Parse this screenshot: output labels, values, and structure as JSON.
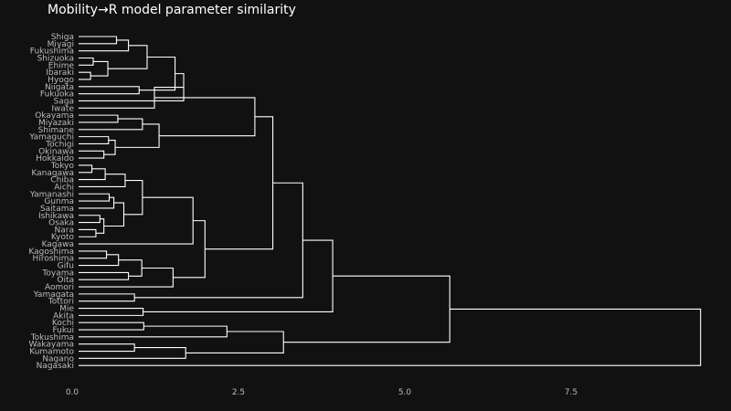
{
  "chart_data": {
    "type": "dendrogram",
    "title": "Mobility→R model parameter similarity",
    "orientation": "horizontal",
    "xlim": [
      0,
      9.5
    ],
    "x_ticks": [
      0,
      2.5,
      5,
      7.5
    ],
    "x_tick_labels": [
      "0.0",
      "2.5",
      "5.0",
      "7.5"
    ],
    "grid": false,
    "leaves": [
      "Shiga",
      "Miyagi",
      "Fukushima",
      "Shizuoka",
      "Ehime",
      "Ibaraki",
      "Hyogo",
      "Niigata",
      "Fukuoka",
      "Saga",
      "Iwate",
      "Okayama",
      "Miyazaki",
      "Shimane",
      "Yamaguchi",
      "Tochigi",
      "Okinawa",
      "Hokkaido",
      "Tokyo",
      "Kanagawa",
      "Chiba",
      "Aichi",
      "Yamanashi",
      "Gunma",
      "Saitama",
      "Ishikawa",
      "Osaka",
      "Nara",
      "Kyoto",
      "Kagawa",
      "Kagoshima",
      "Hiroshima",
      "Gifu",
      "Toyama",
      "Oita",
      "Aomori",
      "Yamagata",
      "Tottori",
      "Mie",
      "Akita",
      "Kochi",
      "Fukui",
      "Tokushima",
      "Wakayama",
      "Kumamoto",
      "Nagano",
      "Nagasaki"
    ],
    "merges": [
      {
        "a": "Shiga",
        "b": "Miyagi",
        "height": 0.57
      },
      {
        "a": 0,
        "b": "Fukushima",
        "height": 0.75
      },
      {
        "a": "Shizuoka",
        "b": "Ehime",
        "height": 0.22
      },
      {
        "a": "Ibaraki",
        "b": "Hyogo",
        "height": 0.18
      },
      {
        "a": 2,
        "b": 3,
        "height": 0.44
      },
      {
        "a": 1,
        "b": 4,
        "height": 1.03
      },
      {
        "a": "Niigata",
        "b": "Fukuoka",
        "height": 0.91
      },
      {
        "a": 5,
        "b": 6,
        "height": 1.45
      },
      {
        "a": 7,
        "b": "Saga",
        "height": 1.58
      },
      {
        "a": 8,
        "b": "Iwate",
        "height": 1.14
      },
      {
        "a": "Okayama",
        "b": "Miyazaki",
        "height": 0.59
      },
      {
        "a": 10,
        "b": "Shimane",
        "height": 0.96
      },
      {
        "a": "Yamaguchi",
        "b": "Tochigi",
        "height": 0.45
      },
      {
        "a": "Okinawa",
        "b": "Hokkaido",
        "height": 0.38
      },
      {
        "a": 12,
        "b": 13,
        "height": 0.55
      },
      {
        "a": 11,
        "b": 14,
        "height": 1.21
      },
      {
        "a": 9,
        "b": 15,
        "height": 2.65
      },
      {
        "a": "Tokyo",
        "b": "Kanagawa",
        "height": 0.2
      },
      {
        "a": 17,
        "b": "Chiba",
        "height": 0.4
      },
      {
        "a": 18,
        "b": "Aichi",
        "height": 0.7
      },
      {
        "a": "Yamanashi",
        "b": "Gunma",
        "height": 0.46
      },
      {
        "a": 20,
        "b": "Saitama",
        "height": 0.53
      },
      {
        "a": "Ishikawa",
        "b": "Osaka",
        "height": 0.32
      },
      {
        "a": "Nara",
        "b": "Kyoto",
        "height": 0.26
      },
      {
        "a": 22,
        "b": 23,
        "height": 0.38
      },
      {
        "a": 21,
        "b": 24,
        "height": 0.68
      },
      {
        "a": 19,
        "b": 25,
        "height": 0.96
      },
      {
        "a": 26,
        "b": "Kagawa",
        "height": 1.72
      },
      {
        "a": "Kagoshima",
        "b": "Hiroshima",
        "height": 0.42
      },
      {
        "a": 28,
        "b": "Gifu",
        "height": 0.6
      },
      {
        "a": "Toyama",
        "b": "Oita",
        "height": 0.75
      },
      {
        "a": 29,
        "b": 30,
        "height": 0.95
      },
      {
        "a": 31,
        "b": "Aomori",
        "height": 1.42
      },
      {
        "a": 27,
        "b": 32,
        "height": 1.9
      },
      {
        "a": 16,
        "b": 33,
        "height": 2.92
      },
      {
        "a": "Yamagata",
        "b": "Tottori",
        "height": 0.84
      },
      {
        "a": 34,
        "b": 35,
        "height": 3.37
      },
      {
        "a": "Mie",
        "b": "Akita",
        "height": 0.97
      },
      {
        "a": 36,
        "b": 37,
        "height": 3.82
      },
      {
        "a": "Kochi",
        "b": "Fukui",
        "height": 0.98
      },
      {
        "a": 39,
        "b": "Tokushima",
        "height": 2.23
      },
      {
        "a": "Wakayama",
        "b": "Kumamoto",
        "height": 0.84
      },
      {
        "a": 41,
        "b": "Nagano",
        "height": 1.61
      },
      {
        "a": 40,
        "b": 42,
        "height": 3.08
      },
      {
        "a": 38,
        "b": 43,
        "height": 5.58
      },
      {
        "a": 44,
        "b": "Nagasaki",
        "height": 9.35
      }
    ]
  }
}
